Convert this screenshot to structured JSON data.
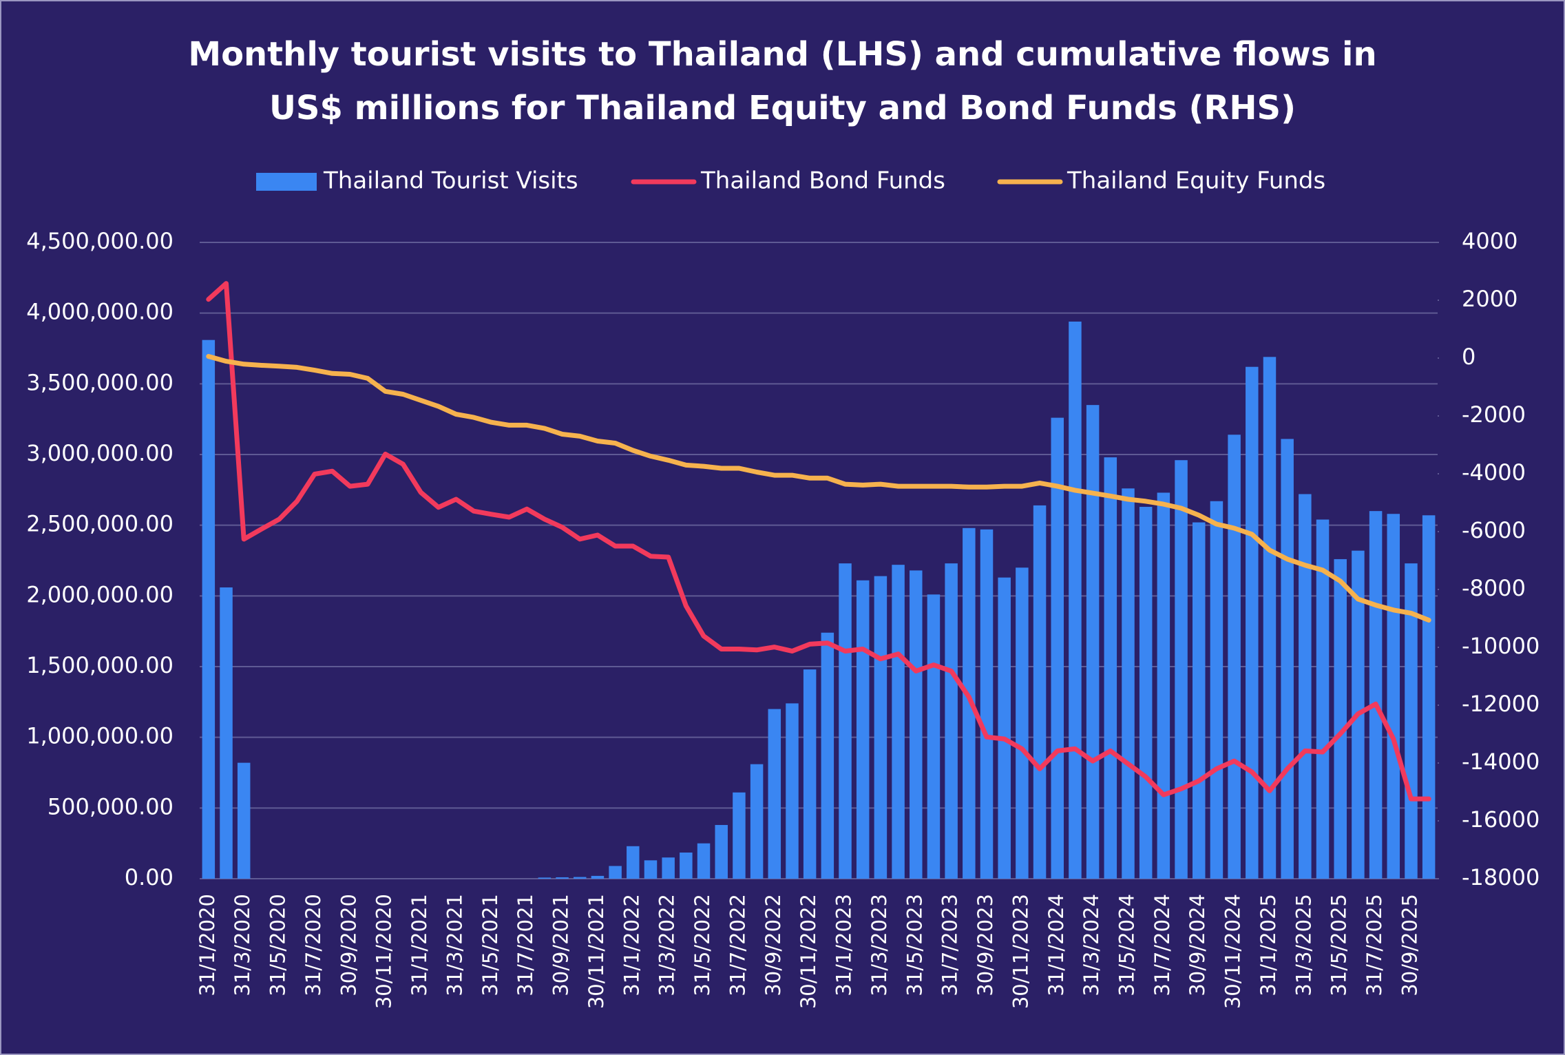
{
  "chart_data": {
    "type": "bar",
    "title": "Monthly tourist visits to Thailand (LHS) and cumulative flows in US$ millions for Thailand Equity and Bond Funds (RHS)",
    "categories": [
      "31/1/2020",
      null,
      "31/3/2020",
      null,
      "31/5/2020",
      null,
      "31/7/2020",
      null,
      "30/9/2020",
      null,
      "30/11/2020",
      null,
      "31/1/2021",
      null,
      "31/3/2021",
      null,
      "31/5/2021",
      null,
      "31/7/2021",
      null,
      "30/9/2021",
      null,
      "30/11/2021",
      null,
      "31/1/2022",
      null,
      "31/3/2022",
      null,
      "31/5/2022",
      null,
      "31/7/2022",
      null,
      "30/9/2022",
      null,
      "30/11/2022",
      null,
      "31/1/2023",
      null,
      "31/3/2023",
      null,
      "31/5/2023",
      null,
      "31/7/2023",
      null,
      "30/9/2023",
      null,
      "30/11/2023",
      null,
      "31/1/2024",
      null,
      "31/3/2024",
      null,
      "31/5/2024",
      null,
      "31/7/2024",
      null,
      "30/9/2024",
      null,
      "30/11/2024",
      null,
      "31/1/2025",
      null,
      "31/3/2025",
      null,
      "31/5/2025",
      null,
      "31/7/2025",
      null,
      "30/9/2025",
      null
    ],
    "series": [
      {
        "name": "Thailand Tourist Visits",
        "type": "bar",
        "color": "#3a86f2",
        "values": [
          3810000,
          2060000,
          820000,
          0,
          0,
          0,
          0,
          0,
          0,
          0,
          0,
          0,
          0,
          0,
          0,
          0,
          0,
          0,
          0,
          8000,
          10000,
          12000,
          20000,
          90000,
          230000,
          130000,
          150000,
          185000,
          250000,
          380000,
          610000,
          810000,
          1200000,
          1240000,
          1480000,
          1740000,
          2230000,
          2110000,
          2140000,
          2220000,
          2180000,
          2010000,
          2230000,
          2480000,
          2470000,
          2130000,
          2200000,
          2640000,
          3260000,
          3940000,
          3350000,
          2980000,
          2760000,
          2630000,
          2730000,
          2960000,
          2520000,
          2670000,
          3140000,
          3620000,
          3690000,
          3110000,
          2720000,
          2540000,
          2260000,
          2320000,
          2600000,
          2580000,
          2230000,
          2570000
        ]
      },
      {
        "name": "Thailand Bond Funds",
        "type": "line",
        "axis": "y2",
        "color": "#f23a5c",
        "values": [
          2030,
          2580,
          -6260,
          -5910,
          -5570,
          -4950,
          -4010,
          -3910,
          -4430,
          -4360,
          -3320,
          -3670,
          -4640,
          -5160,
          -4880,
          -5290,
          -5400,
          -5500,
          -5220,
          -5570,
          -5850,
          -6260,
          -6120,
          -6500,
          -6500,
          -6850,
          -6880,
          -8570,
          -9610,
          -10060,
          -10060,
          -10090,
          -9990,
          -10130,
          -9890,
          -9850,
          -10130,
          -10060,
          -10400,
          -10230,
          -10820,
          -10610,
          -10820,
          -11720,
          -13100,
          -13170,
          -13510,
          -14200,
          -13580,
          -13510,
          -13930,
          -13580,
          -14030,
          -14480,
          -15100,
          -14890,
          -14620,
          -14200,
          -13930,
          -14310,
          -14960,
          -14200,
          -13580,
          -13620,
          -12990,
          -12300,
          -11960,
          -13170,
          -15240,
          -15240
        ]
      },
      {
        "name": "Thailand Equity Funds",
        "type": "line",
        "axis": "y2",
        "color": "#f6b24e",
        "values": [
          60,
          -110,
          -210,
          -250,
          -280,
          -320,
          -420,
          -530,
          -560,
          -700,
          -1150,
          -1250,
          -1460,
          -1670,
          -1940,
          -2050,
          -2220,
          -2320,
          -2320,
          -2430,
          -2630,
          -2700,
          -2870,
          -2940,
          -3190,
          -3390,
          -3530,
          -3700,
          -3740,
          -3810,
          -3810,
          -3940,
          -4050,
          -4050,
          -4150,
          -4150,
          -4360,
          -4390,
          -4360,
          -4430,
          -4430,
          -4430,
          -4430,
          -4460,
          -4460,
          -4430,
          -4430,
          -4320,
          -4430,
          -4570,
          -4670,
          -4770,
          -4880,
          -4950,
          -5050,
          -5190,
          -5430,
          -5740,
          -5880,
          -6090,
          -6640,
          -6950,
          -7160,
          -7330,
          -7710,
          -8330,
          -8540,
          -8710,
          -8820,
          -9060
        ]
      }
    ],
    "ylim": [
      0,
      4500000
    ],
    "yticks": [
      {
        "value": 0,
        "label": "0.00"
      },
      {
        "value": 500000,
        "label": "500,000.00"
      },
      {
        "value": 1000000,
        "label": "1,000,000.00"
      },
      {
        "value": 1500000,
        "label": "1,500,000.00"
      },
      {
        "value": 2000000,
        "label": "2,000,000.00"
      },
      {
        "value": 2500000,
        "label": "2,500,000.00"
      },
      {
        "value": 3000000,
        "label": "3,000,000.00"
      },
      {
        "value": 3500000,
        "label": "3,500,000.00"
      },
      {
        "value": 4000000,
        "label": "4,000,000.00"
      },
      {
        "value": 4500000,
        "label": "4,500,000.00"
      }
    ],
    "y2lim": [
      -18000,
      4000
    ],
    "y2ticks": [
      -18000,
      -16000,
      -14000,
      -12000,
      -10000,
      -8000,
      -6000,
      -4000,
      -2000,
      0,
      2000,
      4000
    ],
    "grid": true,
    "legend": "top"
  }
}
